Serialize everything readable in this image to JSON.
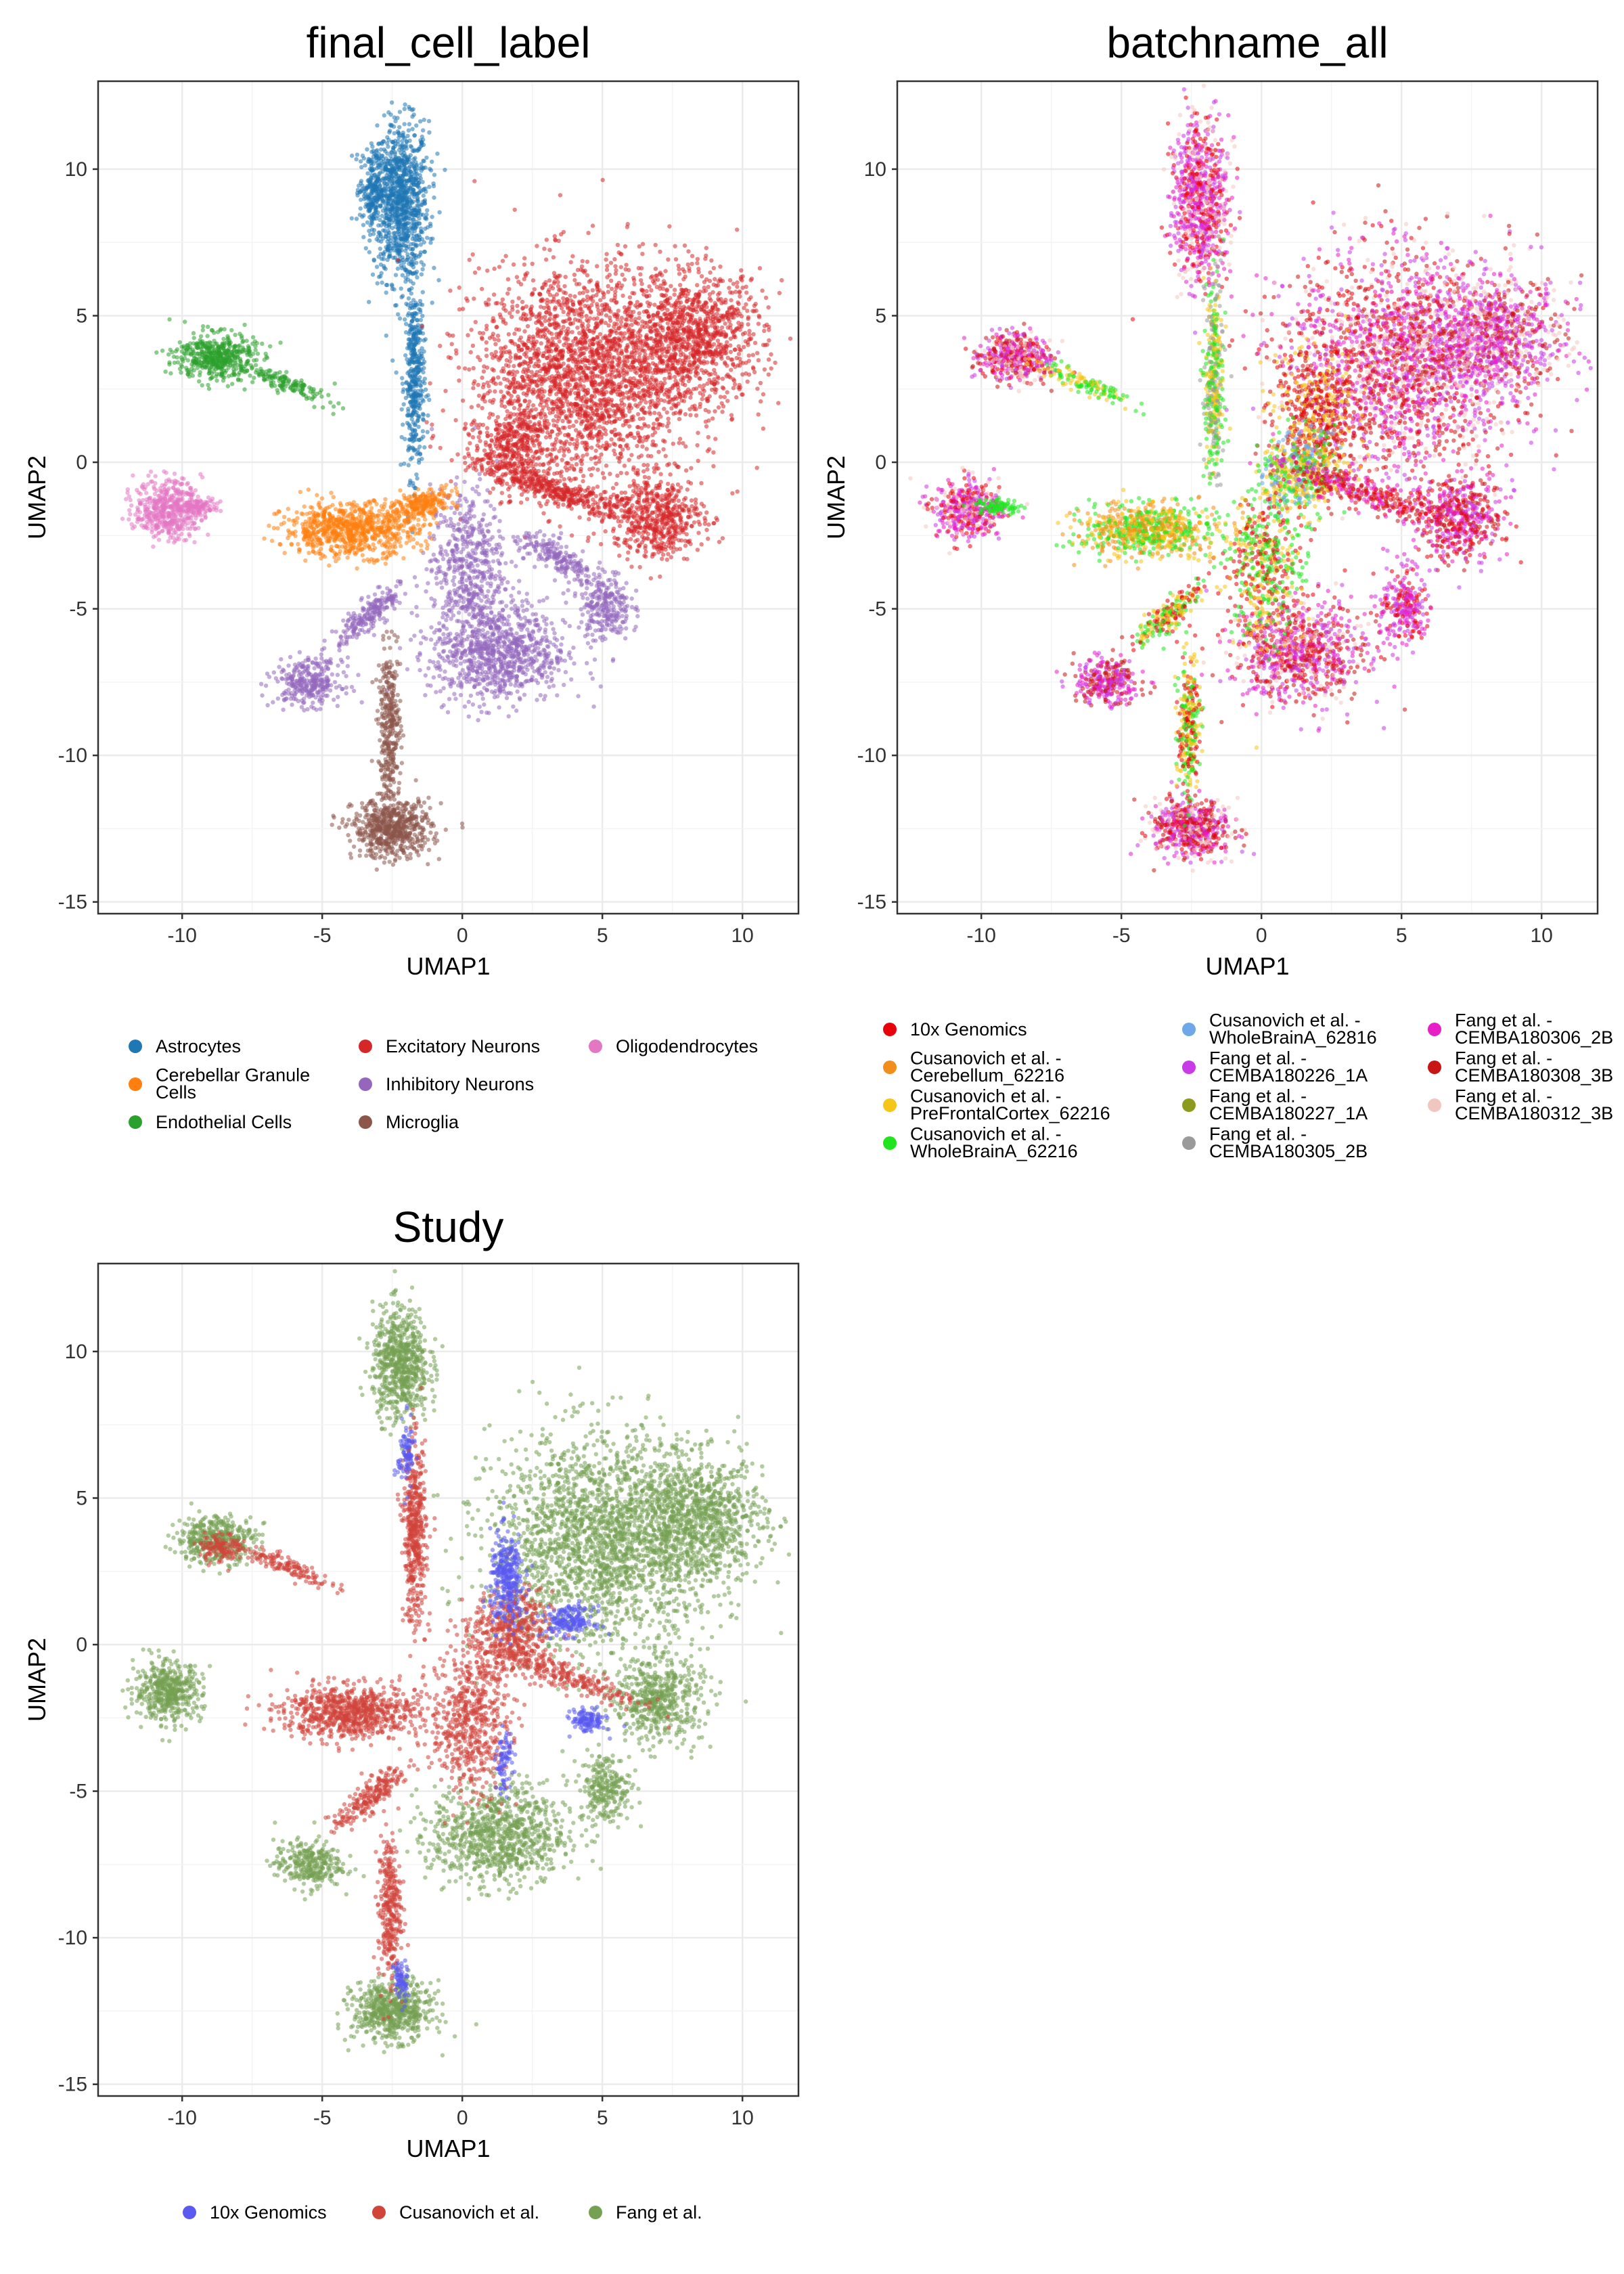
{
  "chart_data": [
    {
      "type": "scatter",
      "title": "final_cell_label",
      "xlabel": "UMAP1",
      "ylabel": "UMAP2",
      "xlim": [
        -13,
        12
      ],
      "ylim": [
        -15.4,
        13
      ],
      "xticks": [
        -10,
        -5,
        0,
        5,
        10
      ],
      "yticks": [
        -15,
        -10,
        -5,
        0,
        5,
        10
      ],
      "xtick_labels": [
        "-10",
        "-5",
        "0",
        "5",
        "10"
      ],
      "ytick_labels": [
        "-15",
        "-10",
        "-5",
        "0",
        "5",
        "10"
      ],
      "grid": true,
      "legend_position": "bottom",
      "legend_columns": 3,
      "legend": [
        {
          "label": "Astrocytes",
          "color": "#1f77b4"
        },
        {
          "label": "Cerebellar Granule Cells",
          "lines": [
            "Cerebellar Granule",
            "Cells"
          ],
          "color": "#ff7f0e"
        },
        {
          "label": "Endothelial Cells",
          "color": "#2ca02c"
        },
        {
          "label": "Excitatory Neurons",
          "color": "#d62728"
        },
        {
          "label": "Inhibitory Neurons",
          "color": "#9467bd"
        },
        {
          "label": "Microglia",
          "color": "#8c564b"
        },
        {
          "label": "Oligodendrocytes",
          "color": "#e377c2"
        }
      ],
      "clusters": [
        {
          "series": 0,
          "cx": -2.2,
          "cy": 8.9,
          "rx": 1.0,
          "ry": 2.7,
          "rot": 0,
          "n": 1000
        },
        {
          "series": 0,
          "cx": -1.7,
          "cy": 2.8,
          "rx": 0.35,
          "ry": 3.3,
          "rot": 0,
          "n": 420
        },
        {
          "series": 0,
          "cx": -3.2,
          "cy": 9.3,
          "rx": 0.45,
          "ry": 1.3,
          "rot": 0,
          "n": 220
        },
        {
          "series": 3,
          "cx": 4.3,
          "cy": 3.0,
          "rx": 3.9,
          "ry": 3.7,
          "rot": 0,
          "n": 2400
        },
        {
          "series": 3,
          "cx": 8.3,
          "cy": 4.3,
          "rx": 2.5,
          "ry": 2.2,
          "rot": 0,
          "n": 1000
        },
        {
          "series": 3,
          "cx": 7.0,
          "cy": -1.9,
          "rx": 1.6,
          "ry": 1.4,
          "rot": 0,
          "n": 500
        },
        {
          "series": 3,
          "cx": 3.5,
          "cy": -1.0,
          "rx": 3.0,
          "ry": 0.5,
          "rot": -18,
          "n": 420
        },
        {
          "series": 3,
          "cx": 1.8,
          "cy": 0.5,
          "rx": 1.4,
          "ry": 1.2,
          "rot": 0,
          "n": 320
        },
        {
          "series": 4,
          "cx": 1.3,
          "cy": -6.5,
          "rx": 2.4,
          "ry": 1.7,
          "rot": 0,
          "n": 900
        },
        {
          "series": 4,
          "cx": 0.2,
          "cy": -3.5,
          "rx": 1.3,
          "ry": 2.6,
          "rot": 0,
          "n": 520
        },
        {
          "series": 4,
          "cx": 5.1,
          "cy": -4.9,
          "rx": 0.9,
          "ry": 1.2,
          "rot": 0,
          "n": 260
        },
        {
          "series": 4,
          "cx": 3.4,
          "cy": -3.3,
          "rx": 1.6,
          "ry": 0.5,
          "rot": -30,
          "n": 200
        },
        {
          "series": 4,
          "cx": -5.5,
          "cy": -7.5,
          "rx": 1.2,
          "ry": 0.8,
          "rot": 0,
          "n": 300
        },
        {
          "series": 4,
          "cx": -3.3,
          "cy": -5.2,
          "rx": 1.6,
          "ry": 0.45,
          "rot": 40,
          "n": 220
        },
        {
          "series": 1,
          "cx": -4.0,
          "cy": -2.3,
          "rx": 2.4,
          "ry": 0.9,
          "rot": 0,
          "n": 780
        },
        {
          "series": 1,
          "cx": -1.4,
          "cy": -1.4,
          "rx": 1.2,
          "ry": 0.45,
          "rot": 15,
          "n": 220
        },
        {
          "series": 5,
          "cx": -2.5,
          "cy": -12.5,
          "rx": 1.4,
          "ry": 1.0,
          "rot": 0,
          "n": 620
        },
        {
          "series": 5,
          "cx": -2.6,
          "cy": -9.0,
          "rx": 0.4,
          "ry": 2.5,
          "rot": 0,
          "n": 320
        },
        {
          "series": 2,
          "cx": -8.8,
          "cy": 3.6,
          "rx": 1.4,
          "ry": 0.8,
          "rot": 0,
          "n": 480
        },
        {
          "series": 2,
          "cx": -6.3,
          "cy": 2.7,
          "rx": 1.7,
          "ry": 0.3,
          "rot": -22,
          "n": 140
        },
        {
          "series": 6,
          "cx": -10.5,
          "cy": -1.6,
          "rx": 1.2,
          "ry": 1.0,
          "rot": 0,
          "n": 480
        },
        {
          "series": 6,
          "cx": -9.4,
          "cy": -1.5,
          "rx": 0.8,
          "ry": 0.25,
          "rot": 0,
          "n": 90
        }
      ]
    },
    {
      "type": "scatter",
      "title": "batchname_all",
      "xlabel": "UMAP1",
      "ylabel": "UMAP2",
      "xlim": [
        -13,
        12
      ],
      "ylim": [
        -15.4,
        13
      ],
      "xticks": [
        -10,
        -5,
        0,
        5,
        10
      ],
      "yticks": [
        -15,
        -10,
        -5,
        0,
        5,
        10
      ],
      "xtick_labels": [
        "-10",
        "-5",
        "0",
        "5",
        "10"
      ],
      "ytick_labels": [
        "-15",
        "-10",
        "-5",
        "0",
        "5",
        "10"
      ],
      "grid": true,
      "legend_position": "bottom",
      "legend_columns": 3,
      "legend": [
        {
          "label": "10x Genomics",
          "color": "#e8000b"
        },
        {
          "label": "Cusanovich et al. - Cerebellum_62216",
          "lines": [
            "Cusanovich et al. -",
            "Cerebellum_62216"
          ],
          "color": "#f28e1c"
        },
        {
          "label": "Cusanovich et al. - PreFrontalCortex_62216",
          "lines": [
            "Cusanovich et al. -",
            "PreFrontalCortex_62216"
          ],
          "color": "#f5c518"
        },
        {
          "label": "Cusanovich et al. - WholeBrainA_62216",
          "lines": [
            "Cusanovich et al. -",
            "WholeBrainA_62216"
          ],
          "color": "#1fe51f"
        },
        {
          "label": "Cusanovich et al. - WholeBrainA_62816",
          "lines": [
            "Cusanovich et al. -",
            "WholeBrainA_62816"
          ],
          "color": "#6fa8e8"
        },
        {
          "label": "Fang et al. - CEMBA180226_1A",
          "lines": [
            "Fang et al. -",
            "CEMBA180226_1A"
          ],
          "color": "#c93be8"
        },
        {
          "label": "Fang et al. - CEMBA180227_1A",
          "lines": [
            "Fang et al. -",
            "CEMBA180227_1A"
          ],
          "color": "#8c9a1e"
        },
        {
          "label": "Fang et al. - CEMBA180305_2B",
          "lines": [
            "Fang et al. -",
            "CEMBA180305_2B"
          ],
          "color": "#9a9a9a"
        },
        {
          "label": "Fang et al. - CEMBA180306_2B",
          "lines": [
            "Fang et al. -",
            "CEMBA180306_2B"
          ],
          "color": "#e81ec8"
        },
        {
          "label": "Fang et al. - CEMBA180308_3B",
          "lines": [
            "Fang et al. -",
            "CEMBA180308_3B"
          ],
          "color": "#c81414"
        },
        {
          "label": "Fang et al. - CEMBA180312_3B",
          "lines": [
            "Fang et al. -",
            "CEMBA180312_3B"
          ],
          "color": "#f2c6c0"
        }
      ],
      "clusters": [
        {
          "series": [
            5,
            8,
            9,
            10,
            0
          ],
          "cx": 5.0,
          "cy": 3.5,
          "rx": 4.0,
          "ry": 3.6,
          "rot": 0,
          "n": 2200
        },
        {
          "series": [
            5,
            8,
            9,
            10
          ],
          "cx": 8.4,
          "cy": 4.3,
          "rx": 2.4,
          "ry": 2.1,
          "rot": 0,
          "n": 900
        },
        {
          "series": [
            0,
            2,
            9
          ],
          "cx": 2.0,
          "cy": 1.5,
          "rx": 1.6,
          "ry": 2.6,
          "rot": 0,
          "n": 600
        },
        {
          "series": [
            2,
            3,
            4
          ],
          "cx": 1.3,
          "cy": -0.4,
          "rx": 1.4,
          "ry": 1.5,
          "rot": 0,
          "n": 420
        },
        {
          "series": [
            5,
            8,
            9,
            0
          ],
          "cx": 7.0,
          "cy": -1.9,
          "rx": 1.6,
          "ry": 1.4,
          "rot": 0,
          "n": 520
        },
        {
          "series": [
            0,
            9,
            8
          ],
          "cx": 3.5,
          "cy": -1.0,
          "rx": 3.0,
          "ry": 0.5,
          "rot": -18,
          "n": 320
        },
        {
          "series": [
            5,
            8,
            9,
            10,
            0
          ],
          "cx": 1.3,
          "cy": -6.5,
          "rx": 2.4,
          "ry": 1.7,
          "rot": 0,
          "n": 900
        },
        {
          "series": [
            3,
            2,
            0
          ],
          "cx": 0.2,
          "cy": -3.5,
          "rx": 1.3,
          "ry": 2.6,
          "rot": 0,
          "n": 520
        },
        {
          "series": [
            8,
            5,
            0
          ],
          "cx": 5.1,
          "cy": -4.9,
          "rx": 0.9,
          "ry": 1.2,
          "rot": 0,
          "n": 260
        },
        {
          "series": [
            5,
            8,
            9
          ],
          "cx": -5.5,
          "cy": -7.5,
          "rx": 1.2,
          "ry": 0.8,
          "rot": 0,
          "n": 300
        },
        {
          "series": [
            3,
            0,
            2
          ],
          "cx": -3.3,
          "cy": -5.2,
          "rx": 1.6,
          "ry": 0.45,
          "rot": 40,
          "n": 220
        },
        {
          "series": [
            3,
            1,
            2
          ],
          "cx": -4.0,
          "cy": -2.3,
          "rx": 2.4,
          "ry": 0.9,
          "rot": 0,
          "n": 780
        },
        {
          "series": [
            5,
            8,
            10,
            0
          ],
          "cx": -2.2,
          "cy": 8.9,
          "rx": 1.0,
          "ry": 2.7,
          "rot": 0,
          "n": 900
        },
        {
          "series": [
            3,
            2,
            7
          ],
          "cx": -1.7,
          "cy": 2.8,
          "rx": 0.35,
          "ry": 3.3,
          "rot": 0,
          "n": 420
        },
        {
          "series": [
            5,
            8,
            10,
            0,
            9
          ],
          "cx": -2.5,
          "cy": -12.5,
          "rx": 1.4,
          "ry": 1.0,
          "rot": 0,
          "n": 620
        },
        {
          "series": [
            3,
            0,
            2
          ],
          "cx": -2.6,
          "cy": -9.0,
          "rx": 0.4,
          "ry": 2.5,
          "rot": 0,
          "n": 320
        },
        {
          "series": [
            5,
            8,
            0,
            9,
            10
          ],
          "cx": -8.8,
          "cy": 3.6,
          "rx": 1.4,
          "ry": 0.8,
          "rot": 0,
          "n": 480
        },
        {
          "series": [
            3,
            2
          ],
          "cx": -6.3,
          "cy": 2.7,
          "rx": 1.7,
          "ry": 0.3,
          "rot": -22,
          "n": 140
        },
        {
          "series": [
            5,
            8,
            10,
            0
          ],
          "cx": -10.5,
          "cy": -1.6,
          "rx": 1.2,
          "ry": 1.0,
          "rot": 0,
          "n": 480
        },
        {
          "series": [
            3
          ],
          "cx": -9.4,
          "cy": -1.5,
          "rx": 0.8,
          "ry": 0.25,
          "rot": 0,
          "n": 90
        }
      ]
    },
    {
      "type": "scatter",
      "title": "Study",
      "xlabel": "UMAP1",
      "ylabel": "UMAP2",
      "xlim": [
        -13,
        12
      ],
      "ylim": [
        -15.4,
        13
      ],
      "xticks": [
        -10,
        -5,
        0,
        5,
        10
      ],
      "yticks": [
        -15,
        -10,
        -5,
        0,
        5,
        10
      ],
      "xtick_labels": [
        "-10",
        "-5",
        "0",
        "5",
        "10"
      ],
      "ytick_labels": [
        "-15",
        "-10",
        "-5",
        "0",
        "5",
        "10"
      ],
      "grid": true,
      "legend_position": "bottom",
      "legend_columns": 3,
      "legend": [
        {
          "label": "10x Genomics",
          "color": "#5a5af0"
        },
        {
          "label": "Cusanovich et al.",
          "color": "#d0443a"
        },
        {
          "label": "Fang et al.",
          "color": "#74a152"
        }
      ],
      "clusters": [
        {
          "series": 2,
          "cx": 5.0,
          "cy": 3.5,
          "rx": 4.0,
          "ry": 3.6,
          "rot": 0,
          "n": 2200
        },
        {
          "series": 2,
          "cx": 8.4,
          "cy": 4.3,
          "rx": 2.4,
          "ry": 2.1,
          "rot": 0,
          "n": 900
        },
        {
          "series": 2,
          "cx": 7.0,
          "cy": -1.9,
          "rx": 1.6,
          "ry": 1.4,
          "rot": 0,
          "n": 520
        },
        {
          "series": 2,
          "cx": 1.3,
          "cy": -6.5,
          "rx": 2.4,
          "ry": 1.7,
          "rot": 0,
          "n": 900
        },
        {
          "series": 2,
          "cx": 5.1,
          "cy": -4.9,
          "rx": 0.9,
          "ry": 1.2,
          "rot": 0,
          "n": 260
        },
        {
          "series": 2,
          "cx": -5.5,
          "cy": -7.5,
          "rx": 1.2,
          "ry": 0.8,
          "rot": 0,
          "n": 300
        },
        {
          "series": 2,
          "cx": -2.2,
          "cy": 9.6,
          "rx": 1.0,
          "ry": 1.9,
          "rot": 0,
          "n": 700
        },
        {
          "series": 2,
          "cx": -2.5,
          "cy": -12.5,
          "rx": 1.4,
          "ry": 1.0,
          "rot": 0,
          "n": 620
        },
        {
          "series": 2,
          "cx": -8.8,
          "cy": 3.6,
          "rx": 1.4,
          "ry": 0.8,
          "rot": 0,
          "n": 420
        },
        {
          "series": 2,
          "cx": -10.5,
          "cy": -1.6,
          "rx": 1.2,
          "ry": 1.0,
          "rot": 0,
          "n": 480
        },
        {
          "series": 1,
          "cx": -1.7,
          "cy": 3.8,
          "rx": 0.4,
          "ry": 3.0,
          "rot": 0,
          "n": 480
        },
        {
          "series": 1,
          "cx": -4.0,
          "cy": -2.3,
          "rx": 2.4,
          "ry": 0.9,
          "rot": 0,
          "n": 780
        },
        {
          "series": 1,
          "cx": 0.3,
          "cy": -2.5,
          "rx": 1.4,
          "ry": 2.6,
          "rot": 0,
          "n": 600
        },
        {
          "series": 1,
          "cx": 1.8,
          "cy": 0.5,
          "rx": 1.4,
          "ry": 1.3,
          "rot": 0,
          "n": 420
        },
        {
          "series": 1,
          "cx": 3.5,
          "cy": -1.0,
          "rx": 3.0,
          "ry": 0.5,
          "rot": -18,
          "n": 300
        },
        {
          "series": 1,
          "cx": -2.6,
          "cy": -9.0,
          "rx": 0.4,
          "ry": 2.5,
          "rot": 0,
          "n": 320
        },
        {
          "series": 1,
          "cx": -3.3,
          "cy": -5.2,
          "rx": 1.6,
          "ry": 0.45,
          "rot": 40,
          "n": 220
        },
        {
          "series": 1,
          "cx": -6.3,
          "cy": 2.7,
          "rx": 1.7,
          "ry": 0.3,
          "rot": -22,
          "n": 140
        },
        {
          "series": 1,
          "cx": -8.6,
          "cy": 3.3,
          "rx": 0.8,
          "ry": 0.5,
          "rot": 0,
          "n": 120
        },
        {
          "series": 0,
          "cx": 1.6,
          "cy": 2.2,
          "rx": 0.6,
          "ry": 1.6,
          "rot": 0,
          "n": 320
        },
        {
          "series": 0,
          "cx": 3.8,
          "cy": 0.8,
          "rx": 0.9,
          "ry": 0.5,
          "rot": 0,
          "n": 180
        },
        {
          "series": 0,
          "cx": 4.5,
          "cy": -2.6,
          "rx": 0.6,
          "ry": 0.4,
          "rot": 0,
          "n": 120
        },
        {
          "series": 0,
          "cx": -2.0,
          "cy": 6.5,
          "rx": 0.3,
          "ry": 1.2,
          "rot": 0,
          "n": 90
        },
        {
          "series": 0,
          "cx": -2.2,
          "cy": -11.5,
          "rx": 0.25,
          "ry": 0.8,
          "rot": 0,
          "n": 70
        },
        {
          "series": 0,
          "cx": 1.5,
          "cy": -4.0,
          "rx": 0.3,
          "ry": 1.0,
          "rot": 0,
          "n": 80
        }
      ]
    }
  ]
}
